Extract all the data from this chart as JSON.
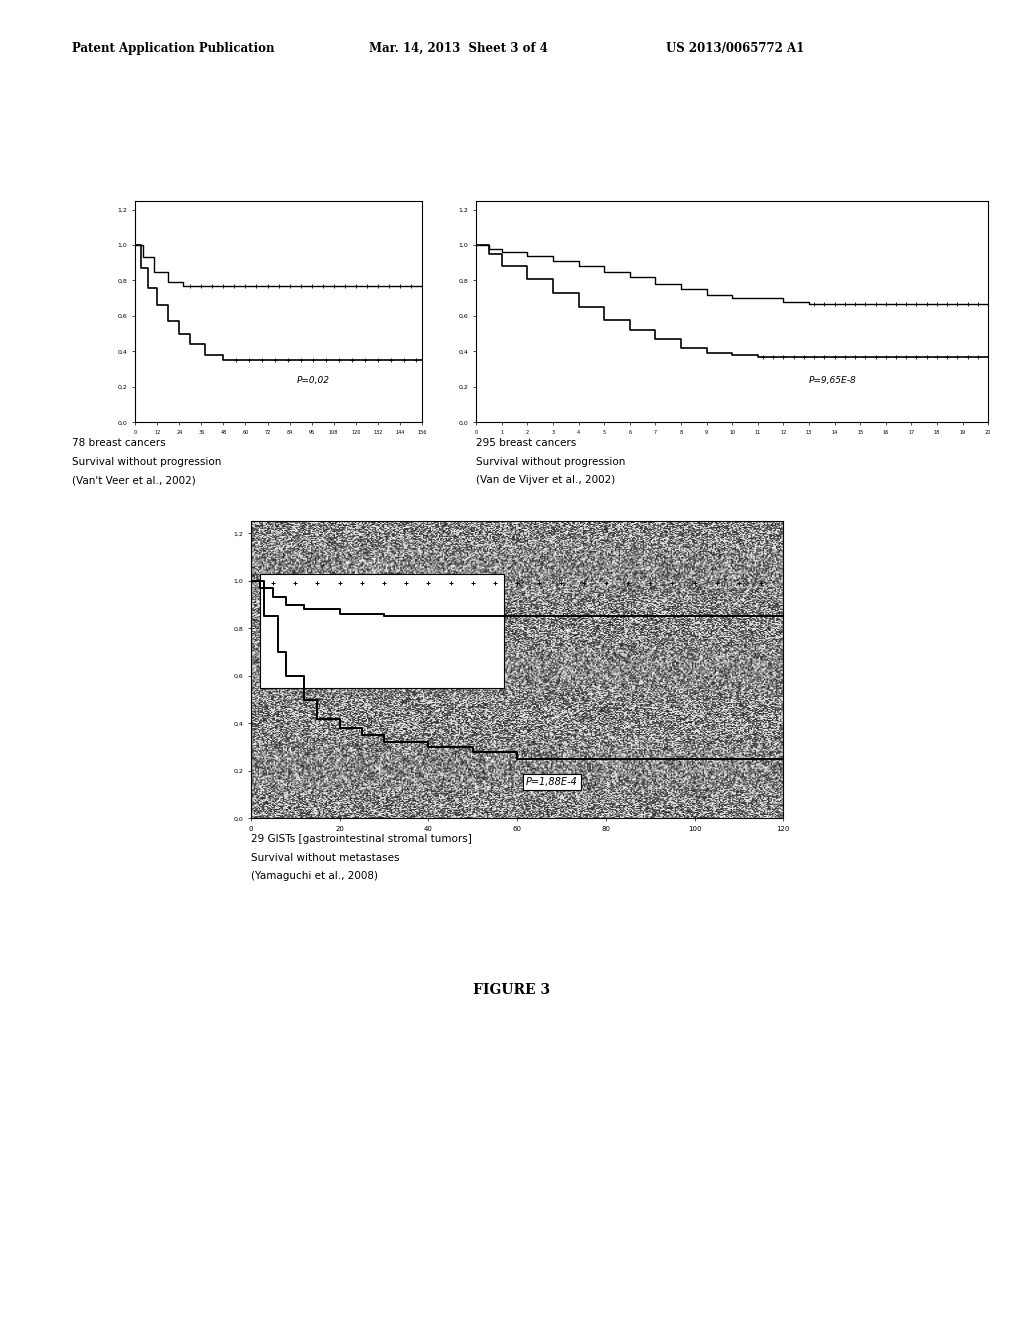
{
  "header_left": "Patent Application Publication",
  "header_mid": "Mar. 14, 2013  Sheet 3 of 4",
  "header_right": "US 2013/0065772 A1",
  "figure_label": "FIGURE 3",
  "plot1": {
    "pvalue": "P=0,02",
    "caption_line1": "78 breast cancers",
    "caption_line2": "Survival without progression",
    "caption_line3": "(Van't Veer et al., 2002)"
  },
  "plot2": {
    "pvalue": "P=9,65E-8",
    "caption_line1": "295 breast cancers",
    "caption_line2": "Survival without progression",
    "caption_line3": "(Van de Vijver et al., 2002)"
  },
  "plot3": {
    "pvalue": "P=1,88E-4",
    "caption_line1": "29 GISTs [gastrointestinal stromal tumors]",
    "caption_line2": "Survival without metastases",
    "caption_line3": "(Yamaguchi et al., 2008)"
  },
  "page_bg": "#ffffff"
}
